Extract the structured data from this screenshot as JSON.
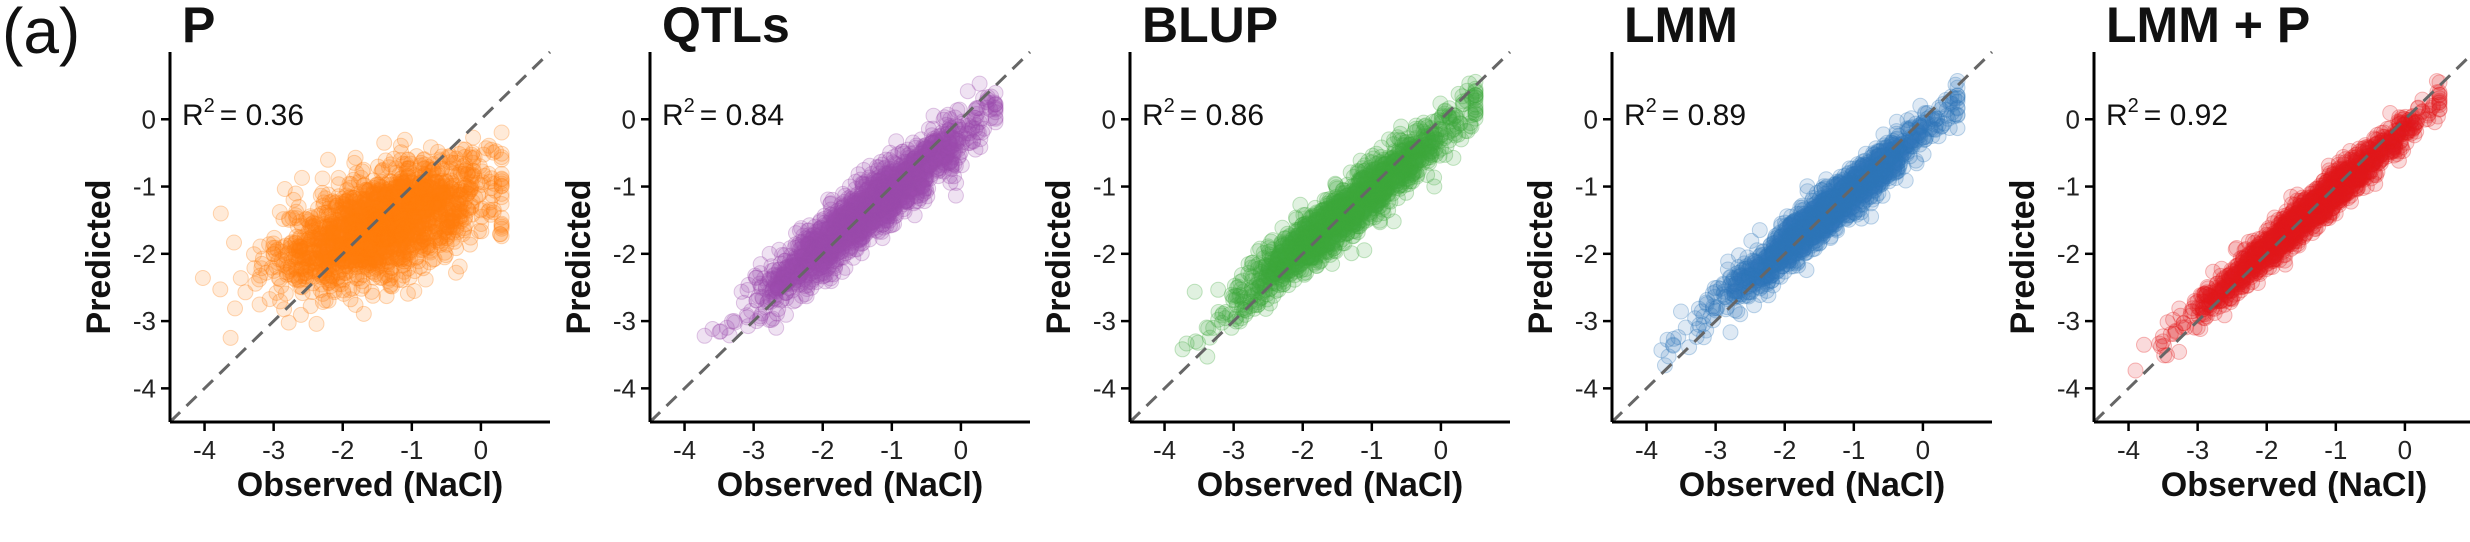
{
  "figure": {
    "panel_letter": "(a)"
  },
  "chart_data": [
    {
      "type": "scatter",
      "title": "P",
      "xlabel": "Observed (NaCl)",
      "ylabel": "Predicted",
      "r2_prefix": "R",
      "r2_exp": "2",
      "r2_value": "= 0.36",
      "r2": 0.36,
      "color": "#ff7f0e",
      "xlim": [
        -4.5,
        1.0
      ],
      "ylim": [
        -4.5,
        1.0
      ],
      "xticks": [
        -4,
        -3,
        -2,
        -1,
        0
      ],
      "yticks": [
        0,
        -1,
        -2,
        -3,
        -4
      ],
      "cloud": {
        "x_center": -1.4,
        "x_sd": 0.75,
        "x_range": [
          -4.2,
          0.3
        ],
        "slope": 0.36,
        "intercept": -1.05,
        "resid_sd": 0.38,
        "n": 1800
      },
      "reference_line": "y = x (dashed)"
    },
    {
      "type": "scatter",
      "title": "QTLs",
      "xlabel": "Observed (NaCl)",
      "ylabel": "Predicted",
      "r2_prefix": "R",
      "r2_exp": "2",
      "r2_value": "= 0.84",
      "r2": 0.84,
      "color": "#9a4dad",
      "xlim": [
        -4.5,
        1.0
      ],
      "ylim": [
        -4.5,
        1.0
      ],
      "xticks": [
        -4,
        -3,
        -2,
        -1,
        0
      ],
      "yticks": [
        0,
        -1,
        -2,
        -3,
        -4
      ],
      "cloud": {
        "x_center": -1.4,
        "x_sd": 0.75,
        "x_range": [
          -4.2,
          0.5
        ],
        "slope": 0.82,
        "intercept": -0.25,
        "resid_sd": 0.22,
        "n": 1800
      },
      "reference_line": "y = x (dashed)"
    },
    {
      "type": "scatter",
      "title": "BLUP",
      "xlabel": "Observed (NaCl)",
      "ylabel": "Predicted",
      "r2_prefix": "R",
      "r2_exp": "2",
      "r2_value": "= 0.86",
      "r2": 0.86,
      "color": "#3faa3c",
      "xlim": [
        -4.5,
        1.0
      ],
      "ylim": [
        -4.5,
        1.0
      ],
      "xticks": [
        -4,
        -3,
        -2,
        -1,
        0
      ],
      "yticks": [
        0,
        -1,
        -2,
        -3,
        -4
      ],
      "cloud": {
        "x_center": -1.4,
        "x_sd": 0.75,
        "x_range": [
          -4.2,
          0.5
        ],
        "slope": 0.84,
        "intercept": -0.22,
        "resid_sd": 0.2,
        "n": 1800
      },
      "reference_line": "y = x (dashed)"
    },
    {
      "type": "scatter",
      "title": "LMM",
      "xlabel": "Observed (NaCl)",
      "ylabel": "Predicted",
      "r2_prefix": "R",
      "r2_exp": "2",
      "r2_value": "= 0.89",
      "r2": 0.89,
      "color": "#2f78b8",
      "xlim": [
        -4.5,
        1.0
      ],
      "ylim": [
        -4.5,
        1.0
      ],
      "xticks": [
        -4,
        -3,
        -2,
        -1,
        0
      ],
      "yticks": [
        0,
        -1,
        -2,
        -3,
        -4
      ],
      "cloud": {
        "x_center": -1.4,
        "x_sd": 0.75,
        "x_range": [
          -4.2,
          0.5
        ],
        "slope": 0.86,
        "intercept": -0.2,
        "resid_sd": 0.17,
        "n": 1800
      },
      "reference_line": "y = x (dashed)"
    },
    {
      "type": "scatter",
      "title": "LMM + P",
      "xlabel": "Observed (NaCl)",
      "ylabel": "Predicted",
      "r2_prefix": "R",
      "r2_exp": "2",
      "r2_value": "= 0.92",
      "r2": 0.92,
      "color": "#e31a1c",
      "xlim": [
        -4.5,
        1.0
      ],
      "ylim": [
        -4.5,
        1.0
      ],
      "xticks": [
        -4,
        -3,
        -2,
        -1,
        0
      ],
      "yticks": [
        0,
        -1,
        -2,
        -3,
        -4
      ],
      "cloud": {
        "x_center": -1.4,
        "x_sd": 0.75,
        "x_range": [
          -4.2,
          0.5
        ],
        "slope": 0.9,
        "intercept": -0.15,
        "resid_sd": 0.14,
        "n": 1800
      },
      "reference_line": "y = x (dashed)"
    }
  ]
}
